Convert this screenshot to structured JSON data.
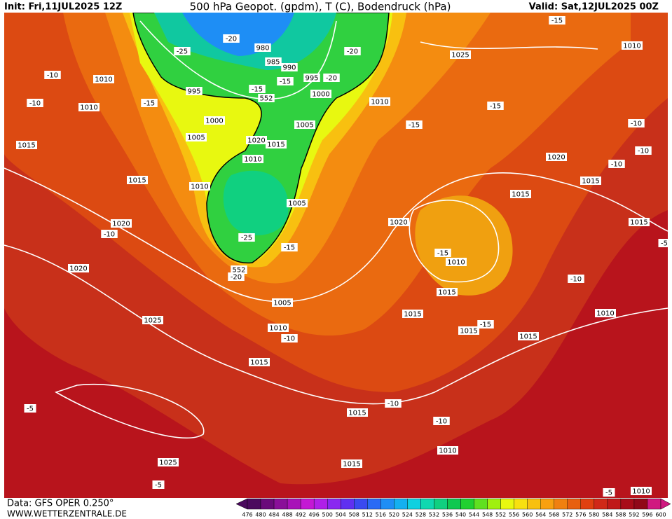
{
  "header": {
    "init": "Init: Fri,11JUL2025 12Z",
    "title": "500 hPa Geopot. (gpdm), T (C), Bodendruck (hPa)",
    "valid": "Valid: Sat,12JUL2025 00Z"
  },
  "footer": {
    "source": "Data: GFS OPER 0.250°",
    "site": "WWW.WETTERZENTRALE.DE"
  },
  "scale": {
    "values": [
      476,
      480,
      484,
      488,
      492,
      496,
      500,
      504,
      508,
      512,
      516,
      520,
      524,
      528,
      532,
      536,
      540,
      544,
      548,
      552,
      556,
      560,
      564,
      568,
      572,
      576,
      580,
      584,
      588,
      592,
      596,
      600
    ],
    "colors": [
      "#4b0a5e",
      "#6a0a7a",
      "#8a0f99",
      "#a812b8",
      "#c418d4",
      "#b020e8",
      "#8a28f0",
      "#6030f0",
      "#3a4af0",
      "#2a6af5",
      "#1e8ef5",
      "#14b0f0",
      "#10d0e0",
      "#10d8b0",
      "#10d080",
      "#10c850",
      "#20d030",
      "#60e020",
      "#a0f010",
      "#e8f810",
      "#f8e010",
      "#f8c010",
      "#f8a010",
      "#f08010",
      "#e86010",
      "#e04010",
      "#d02818",
      "#c01818",
      "#a80c18",
      "#900818",
      "#d01880"
    ]
  },
  "map": {
    "labels": [
      "-10",
      "-10",
      "1010",
      "-10",
      "1010",
      "1015",
      "-25",
      "-20",
      "980",
      "985",
      "990",
      "995",
      "-20",
      "-15",
      "-15",
      "995",
      "1000",
      "552",
      "-15",
      "1000",
      "1005",
      "1005",
      "1020",
      "1015",
      "1010",
      "1015",
      "1010",
      "1005",
      "-25",
      "-15",
      "552",
      "-20",
      "1020",
      "-10",
      "1020",
      "1025",
      "1005",
      "1010",
      "-10",
      "1015",
      "-5",
      "1025",
      "-5",
      "1015",
      "-10",
      "-10",
      "1010",
      "1015",
      "1010",
      "-5",
      "-15",
      "1010",
      "1025",
      "-20",
      "1010",
      "-15",
      "-15",
      "-10",
      "-10",
      "1020",
      "-10",
      "1015",
      "1015",
      "1020",
      "1015",
      "-5",
      "-15",
      "1010",
      "-10",
      "1015",
      "1015",
      "1010",
      "-15",
      "1015",
      "1015"
    ]
  }
}
